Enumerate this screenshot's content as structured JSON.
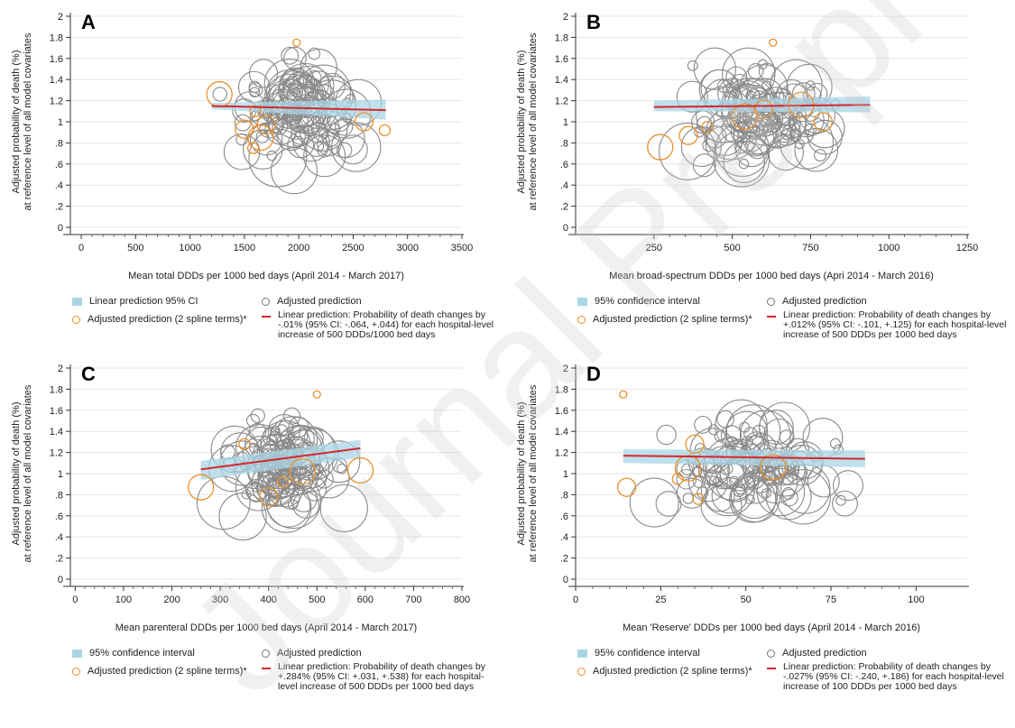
{
  "watermark": "Journal Pre-proof",
  "colors": {
    "ci": "#a9d6e5",
    "gray": "#8a8a8a",
    "orange": "#e8902c",
    "red": "#d6262e",
    "grid": "#e6e6e6"
  },
  "chart_data": [
    {
      "panel": "A",
      "type": "scatter",
      "xlabel": "Mean total DDDs per 1000 bed days (April 2014 - March 2017)",
      "ylabel": [
        "Adjusted probability of death (%)",
        "at reference level of all model covariates"
      ],
      "xlim": [
        -100,
        3500
      ],
      "ylim": [
        0,
        2
      ],
      "xticks": [
        0,
        500,
        1000,
        1500,
        2000,
        2500,
        3000,
        3500
      ],
      "yticks": [
        0,
        0.2,
        0.4,
        0.6,
        0.8,
        1,
        1.2,
        1.4,
        1.6,
        1.8,
        2
      ],
      "ytick_labels": [
        "0",
        ".2",
        ".4",
        ".6",
        ".8",
        "1",
        "1.2",
        "1.4",
        "1.6",
        "1.8",
        "2"
      ],
      "grid": true,
      "fit": {
        "x": [
          1200,
          2800
        ],
        "y": [
          1.15,
          1.11
        ]
      },
      "ci": {
        "x": [
          1200,
          2800
        ],
        "lower": [
          1.12,
          1.02
        ],
        "upper": [
          1.18,
          1.21
        ]
      },
      "seed": 11,
      "xrange_points": [
        1180,
        2820
      ],
      "orange_points": [
        {
          "x": 1270,
          "y": 1.26
        },
        {
          "x": 1500,
          "y": 0.93
        },
        {
          "x": 1580,
          "y": 0.75
        },
        {
          "x": 1650,
          "y": 0.85
        },
        {
          "x": 1700,
          "y": 0.97
        },
        {
          "x": 1600,
          "y": 1.1
        },
        {
          "x": 1980,
          "y": 1.75
        },
        {
          "x": 2600,
          "y": 1.0
        },
        {
          "x": 2790,
          "y": 0.92
        }
      ],
      "legend": [
        {
          "kind": "ci",
          "text": "Linear prediction 95% CI"
        },
        {
          "kind": "gray",
          "text": "Adjusted prediction"
        },
        {
          "kind": "orange",
          "text": "Adjusted prediction (2 spline terms)*"
        },
        {
          "kind": "red",
          "text": "Linear prediction: Probability of death changes by -.01% (95% CI: -.064, +.044) for each hospital-level increase of 500 DDDs/1000 bed days"
        }
      ]
    },
    {
      "panel": "B",
      "type": "scatter",
      "xlabel": "Mean broad-spectrum DDDs per 1000 bed days (Apri 2014 - March 2016)",
      "ylabel": [
        "Adjusted probability of death (%)",
        "at reference level of all model covariates"
      ],
      "xlim": [
        0,
        1250
      ],
      "ylim": [
        0,
        2
      ],
      "xticks": [
        250,
        500,
        750,
        1000,
        1250
      ],
      "yticks": [
        0,
        0.2,
        0.4,
        0.6,
        0.8,
        1,
        1.2,
        1.4,
        1.6,
        1.8,
        2
      ],
      "ytick_labels": [
        "0",
        ".2",
        ".4",
        ".6",
        ".8",
        "1",
        "1.2",
        "1.4",
        "1.6",
        "1.8",
        "2"
      ],
      "grid": true,
      "fit": {
        "x": [
          250,
          940
        ],
        "y": [
          1.14,
          1.16
        ]
      },
      "ci": {
        "x": [
          250,
          940
        ],
        "lower": [
          1.1,
          1.09
        ],
        "upper": [
          1.2,
          1.24
        ]
      },
      "seed": 22,
      "xrange_points": [
        240,
        950
      ],
      "orange_points": [
        {
          "x": 270,
          "y": 0.76
        },
        {
          "x": 360,
          "y": 0.87
        },
        {
          "x": 420,
          "y": 0.95
        },
        {
          "x": 540,
          "y": 1.05
        },
        {
          "x": 600,
          "y": 1.12
        },
        {
          "x": 630,
          "y": 1.75
        },
        {
          "x": 720,
          "y": 1.16
        },
        {
          "x": 790,
          "y": 1.0
        }
      ],
      "legend": [
        {
          "kind": "ci",
          "text": "95% confidence interval"
        },
        {
          "kind": "gray",
          "text": "Adjusted prediction"
        },
        {
          "kind": "orange",
          "text": "Adjusted prediction (2 spline terms)*"
        },
        {
          "kind": "red",
          "text": "Linear prediction: Probability of death changes by +.012% (95% CI: -.101, +.125) for each hospital-level increase of 500 DDDs per 1000 bed days"
        }
      ]
    },
    {
      "panel": "C",
      "type": "scatter",
      "xlabel": "Mean parenteral DDDs per 1000 bed days (April 2014 - March 2017)",
      "ylabel": [
        "Adjusted probability of death (%)",
        "at reference level of all model covariates"
      ],
      "xlim": [
        -10,
        800
      ],
      "ylim": [
        0,
        2
      ],
      "xticks": [
        0,
        100,
        200,
        300,
        400,
        500,
        600,
        700,
        800
      ],
      "yticks": [
        0,
        0.2,
        0.4,
        0.6,
        0.8,
        1,
        1.2,
        1.4,
        1.6,
        1.8,
        2
      ],
      "ytick_labels": [
        "0",
        ".2",
        ".4",
        ".6",
        ".8",
        "1",
        "1.2",
        "1.4",
        "1.6",
        "1.8",
        "2"
      ],
      "grid": true,
      "fit": {
        "x": [
          260,
          590
        ],
        "y": [
          1.04,
          1.24
        ]
      },
      "ci": {
        "x": [
          260,
          590
        ],
        "lower": [
          0.94,
          1.15
        ],
        "upper": [
          1.12,
          1.32
        ]
      },
      "seed": 33,
      "xrange_points": [
        255,
        600
      ],
      "orange_points": [
        {
          "x": 260,
          "y": 0.87
        },
        {
          "x": 400,
          "y": 0.78
        },
        {
          "x": 430,
          "y": 0.92
        },
        {
          "x": 470,
          "y": 1.02
        },
        {
          "x": 500,
          "y": 1.75
        },
        {
          "x": 350,
          "y": 1.28
        },
        {
          "x": 590,
          "y": 1.03
        }
      ],
      "legend": [
        {
          "kind": "ci",
          "text": "95% confidence interval"
        },
        {
          "kind": "gray",
          "text": "Adjusted prediction"
        },
        {
          "kind": "orange",
          "text": "Adjusted prediction (2 spline terms)*"
        },
        {
          "kind": "red",
          "text": "Linear prediction: Probability of death changes by +.284% (95% CI: +.031, +.538) for each hospital-level increase of 500 DDDs per 1000 bed days"
        }
      ]
    },
    {
      "panel": "D",
      "type": "scatter",
      "xlabel": "Mean 'Reserve' DDDs per 1000 bed days (April 2014 - March 2016)",
      "ylabel": [
        "Adjusted probability of death (%)",
        "at reference level of all model covariates"
      ],
      "xlim": [
        0,
        115
      ],
      "ylim": [
        0,
        2
      ],
      "xticks": [
        0,
        25,
        50,
        75,
        100
      ],
      "yticks": [
        0,
        0.2,
        0.4,
        0.6,
        0.8,
        1,
        1.2,
        1.4,
        1.6,
        1.8,
        2
      ],
      "ytick_labels": [
        "0",
        ".2",
        ".4",
        ".6",
        ".8",
        "1",
        "1.2",
        "1.4",
        "1.6",
        "1.8",
        "2"
      ],
      "grid": true,
      "fit": {
        "x": [
          14,
          85
        ],
        "y": [
          1.17,
          1.14
        ]
      },
      "ci": {
        "x": [
          14,
          85
        ],
        "lower": [
          1.1,
          1.06
        ],
        "upper": [
          1.23,
          1.22
        ]
      },
      "seed": 44,
      "xrange_points": [
        13,
        88
      ],
      "orange_points": [
        {
          "x": 14,
          "y": 1.75
        },
        {
          "x": 15,
          "y": 0.87
        },
        {
          "x": 30,
          "y": 0.95
        },
        {
          "x": 33,
          "y": 1.05
        },
        {
          "x": 35,
          "y": 1.28
        },
        {
          "x": 36,
          "y": 0.76
        },
        {
          "x": 58,
          "y": 1.06
        }
      ],
      "legend": [
        {
          "kind": "ci",
          "text": "95% confidence interval"
        },
        {
          "kind": "gray",
          "text": "Adjusted prediction"
        },
        {
          "kind": "orange",
          "text": "Adjusted prediction (2 spline terms)*"
        },
        {
          "kind": "red",
          "text": "Linear prediction: Probability of death changes by -.027% (95% CI: -.240, +.186) for each hospital-level increase of 100 DDDs per 1000 bed days"
        }
      ]
    }
  ]
}
